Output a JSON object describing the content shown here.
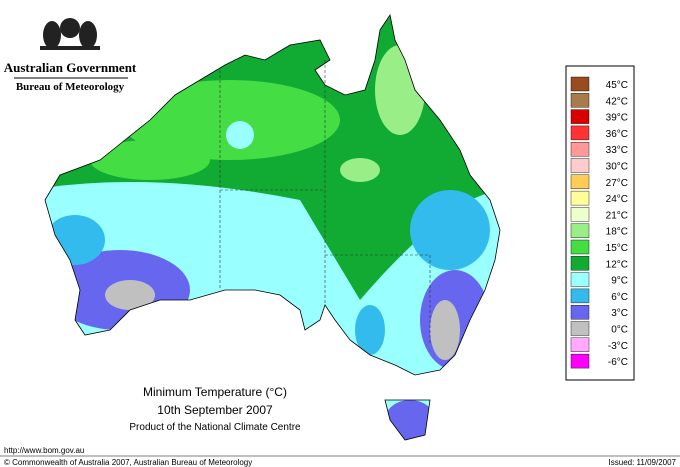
{
  "header": {
    "government": "Australian Government",
    "bureau": "Bureau of Meteorology"
  },
  "map": {
    "title": "Minimum Temperature (°C)",
    "date": "10th September 2007",
    "product": "Product of the National Climate Centre"
  },
  "legend": {
    "items": [
      {
        "label": "45°C",
        "color": "#994c1f"
      },
      {
        "label": "42°C",
        "color": "#a87a4c"
      },
      {
        "label": "39°C",
        "color": "#d90000"
      },
      {
        "label": "36°C",
        "color": "#ff3333"
      },
      {
        "label": "33°C",
        "color": "#ff9999"
      },
      {
        "label": "30°C",
        "color": "#ffcccc"
      },
      {
        "label": "27°C",
        "color": "#ffcc55"
      },
      {
        "label": "24°C",
        "color": "#ffff99"
      },
      {
        "label": "21°C",
        "color": "#eeffcc"
      },
      {
        "label": "18°C",
        "color": "#99ee88"
      },
      {
        "label": "15°C",
        "color": "#44dd44"
      },
      {
        "label": "12°C",
        "color": "#11aa33"
      },
      {
        "label": "9°C",
        "color": "#99ffff"
      },
      {
        "label": "6°C",
        "color": "#33bbee"
      },
      {
        "label": "3°C",
        "color": "#6666ee"
      },
      {
        "label": "0°C",
        "color": "#c0c0c0"
      },
      {
        "label": "-3°C",
        "color": "#ffaaff"
      },
      {
        "label": "-6°C",
        "color": "#ff00ff"
      }
    ]
  },
  "footer": {
    "url": "http://www.bom.gov.au",
    "copyright": "© Commonwealth of Australia 2007, Australian Bureau of Meteorology",
    "issued": "Issued: 11/09/2007"
  }
}
